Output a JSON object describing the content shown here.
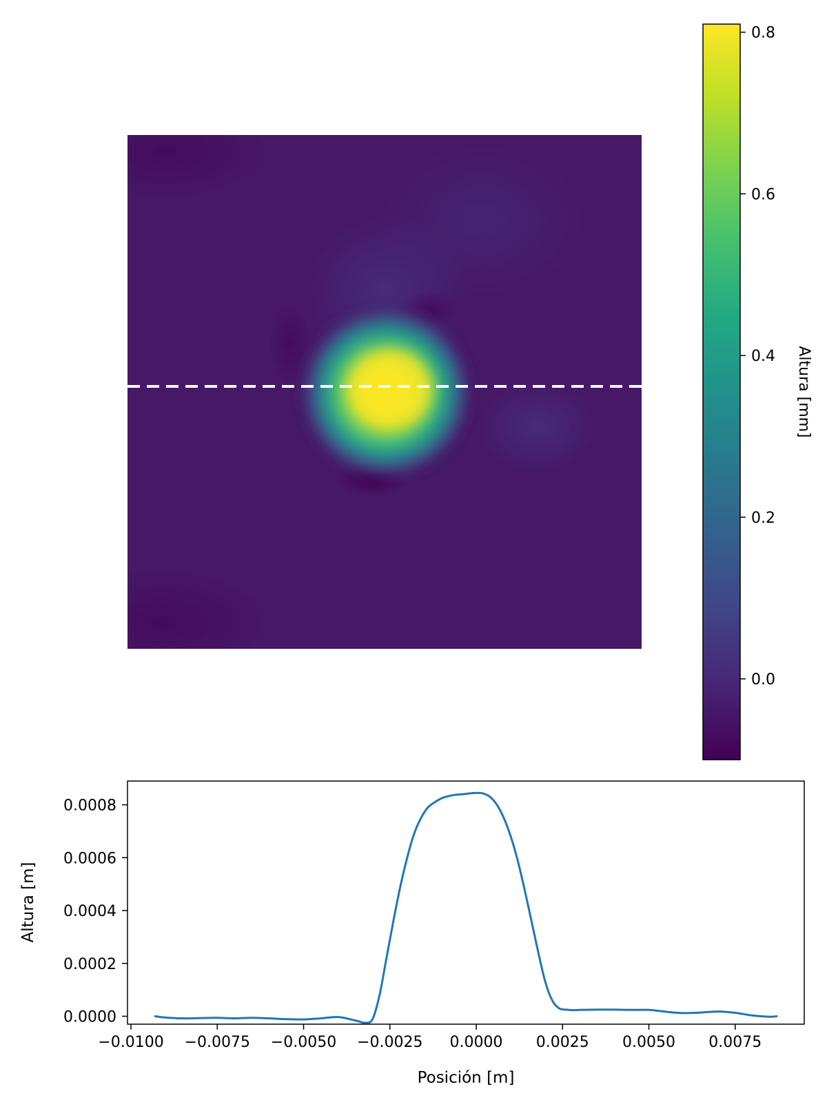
{
  "chart_data": [
    {
      "type": "heatmap",
      "title": "",
      "xlabel": "",
      "ylabel": "",
      "axes_visible": false,
      "colormap": "viridis",
      "value_range": [
        -0.1,
        0.81
      ],
      "features": {
        "peak": {
          "value": 0.8,
          "x": 0.51,
          "y": 0.49
        },
        "depression": {
          "value": -0.08,
          "x": 0.48,
          "y": 0.67
        }
      },
      "overlay": {
        "style": "dashed",
        "color": "#ffffff",
        "y_fraction": 0.49
      },
      "colorbar": {
        "label": "Altura [mm]",
        "ticks": [
          0.0,
          0.2,
          0.4,
          0.6,
          0.8
        ],
        "tick_labels": [
          "0.0",
          "0.2",
          "0.4",
          "0.6",
          "0.8"
        ],
        "range": [
          -0.1,
          0.81
        ]
      }
    },
    {
      "type": "line",
      "title": "",
      "xlabel": "Posición [m]",
      "ylabel": "Altura [m]",
      "xlim": [
        -0.0101,
        0.0095
      ],
      "ylim": [
        -3e-05,
        0.00089
      ],
      "xticks": [
        -0.01,
        -0.0075,
        -0.005,
        -0.0025,
        0.0,
        0.0025,
        0.005,
        0.0075
      ],
      "xtick_labels": [
        "−0.0100",
        "−0.0075",
        "−0.0050",
        "−0.0025",
        "0.0000",
        "0.0025",
        "0.0050",
        "0.0075"
      ],
      "yticks": [
        0.0,
        0.0002,
        0.0004,
        0.0006,
        0.0008
      ],
      "ytick_labels": [
        "0.0000",
        "0.0002",
        "0.0004",
        "0.0006",
        "0.0008"
      ],
      "grid": false,
      "series": [
        {
          "color": "#1f77b4",
          "x": [
            -0.0093,
            -0.009,
            -0.0085,
            -0.008,
            -0.0075,
            -0.007,
            -0.0065,
            -0.006,
            -0.0055,
            -0.005,
            -0.0045,
            -0.004,
            -0.0035,
            -0.0032,
            -0.003,
            -0.0028,
            -0.0026,
            -0.0024,
            -0.0022,
            -0.002,
            -0.0018,
            -0.0016,
            -0.0014,
            -0.0012,
            -0.001,
            -0.0008,
            -0.0006,
            -0.0004,
            -0.0002,
            0.0,
            0.0002,
            0.0004,
            0.0006,
            0.0008,
            0.001,
            0.0012,
            0.0014,
            0.0016,
            0.0018,
            0.002,
            0.0022,
            0.0024,
            0.0026,
            0.0028,
            0.003,
            0.0035,
            0.004,
            0.0045,
            0.005,
            0.0055,
            0.006,
            0.0065,
            0.007,
            0.0075,
            0.008,
            0.0085,
            0.0087
          ],
          "y": [
            0.0,
            -5e-06,
            -8e-06,
            -7e-06,
            -6e-06,
            -8e-06,
            -6e-06,
            -8e-06,
            -1.1e-05,
            -1.2e-05,
            -8e-06,
            -3e-06,
            -1.6e-05,
            -2.5e-05,
            -1e-05,
            8e-05,
            0.00022,
            0.00036,
            0.00049,
            0.0006,
            0.00069,
            0.00075,
            0.00079,
            0.00081,
            0.000825,
            0.000833,
            0.000838,
            0.00084,
            0.000843,
            0.000845,
            0.000843,
            0.00083,
            0.0008,
            0.00075,
            0.00068,
            0.00059,
            0.00048,
            0.00036,
            0.00024,
            0.00013,
            6e-05,
            3e-05,
            2.5e-05,
            2.3e-05,
            2.4e-05,
            2.5e-05,
            2.5e-05,
            2.4e-05,
            2.4e-05,
            1.7e-05,
            1.2e-05,
            1.4e-05,
            1.8e-05,
            1.3e-05,
            3e-06,
            -2e-06,
            0.0
          ]
        }
      ]
    }
  ]
}
